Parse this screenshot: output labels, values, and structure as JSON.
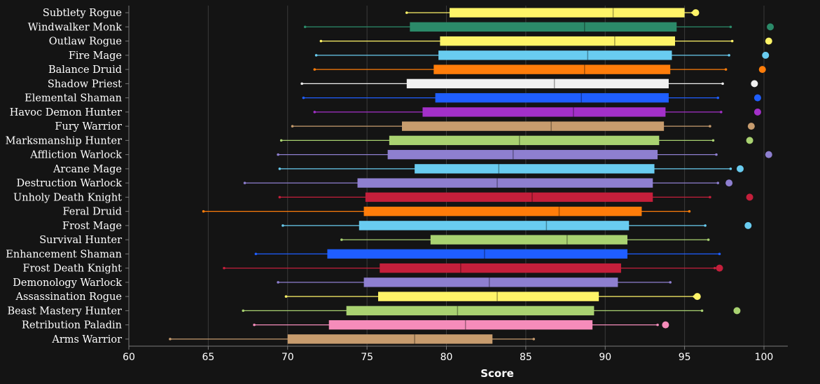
{
  "chart_data": {
    "type": "boxplot",
    "orientation": "horizontal",
    "title": "",
    "xlabel": "Score",
    "ylabel": "",
    "xlim": [
      60,
      101.5
    ],
    "xticks": [
      60,
      65,
      70,
      75,
      80,
      85,
      90,
      95,
      100
    ],
    "grid": true,
    "legend": false,
    "colors": {
      "background": "#141414",
      "grid": "#3a3a3a",
      "axis": "#7a7a7a",
      "text": "#ffffff"
    },
    "categories": [
      {
        "name": "Subtlety Rogue",
        "color": "#fff468",
        "whisker_low": 77.5,
        "q1": 80.2,
        "median": 90.5,
        "q3": 95.0,
        "whisker_high": 95.5,
        "outliers": [
          95.7
        ]
      },
      {
        "name": "Windwalker Monk",
        "color": "#2b8a69",
        "whisker_low": 71.1,
        "q1": 77.7,
        "median": 88.7,
        "q3": 94.5,
        "whisker_high": 97.9,
        "outliers": [
          100.4
        ]
      },
      {
        "name": "Outlaw Rogue",
        "color": "#fff468",
        "whisker_low": 72.1,
        "q1": 79.6,
        "median": 90.6,
        "q3": 94.4,
        "whisker_high": 98.0,
        "outliers": [
          100.3
        ]
      },
      {
        "name": "Fire Mage",
        "color": "#69ccf0",
        "whisker_low": 71.8,
        "q1": 79.5,
        "median": 88.9,
        "q3": 94.2,
        "whisker_high": 97.8,
        "outliers": [
          100.1
        ]
      },
      {
        "name": "Balance Druid",
        "color": "#ff7d0a",
        "whisker_low": 71.7,
        "q1": 79.2,
        "median": 88.7,
        "q3": 94.1,
        "whisker_high": 97.6,
        "outliers": [
          99.9
        ]
      },
      {
        "name": "Shadow Priest",
        "color": "#f0f0f0",
        "whisker_low": 70.9,
        "q1": 77.5,
        "median": 86.8,
        "q3": 94.0,
        "whisker_high": 97.4,
        "outliers": [
          99.4
        ]
      },
      {
        "name": "Elemental Shaman",
        "color": "#1f5eff",
        "whisker_low": 71.0,
        "q1": 79.3,
        "median": 88.5,
        "q3": 94.0,
        "whisker_high": 97.1,
        "outliers": [
          99.6
        ]
      },
      {
        "name": "Havoc Demon Hunter",
        "color": "#a330c9",
        "whisker_low": 71.7,
        "q1": 78.5,
        "median": 88.0,
        "q3": 93.8,
        "whisker_high": 97.3,
        "outliers": [
          99.6
        ]
      },
      {
        "name": "Fury Warrior",
        "color": "#c79c6e",
        "whisker_low": 70.3,
        "q1": 77.2,
        "median": 86.6,
        "q3": 93.7,
        "whisker_high": 96.6,
        "outliers": [
          99.2
        ]
      },
      {
        "name": "Marksmanship Hunter",
        "color": "#a9d271",
        "whisker_low": 69.6,
        "q1": 76.4,
        "median": 84.6,
        "q3": 93.4,
        "whisker_high": 96.8,
        "outliers": [
          99.1
        ]
      },
      {
        "name": "Affliction Warlock",
        "color": "#8e7fd0",
        "whisker_low": 69.4,
        "q1": 76.3,
        "median": 84.2,
        "q3": 93.3,
        "whisker_high": 97.0,
        "outliers": [
          100.3
        ]
      },
      {
        "name": "Arcane Mage",
        "color": "#69ccf0",
        "whisker_low": 69.5,
        "q1": 78.0,
        "median": 83.3,
        "q3": 93.1,
        "whisker_high": 97.9,
        "outliers": [
          98.5
        ]
      },
      {
        "name": "Destruction Warlock",
        "color": "#8e7fd0",
        "whisker_low": 67.3,
        "q1": 74.4,
        "median": 83.2,
        "q3": 93.0,
        "whisker_high": 97.1,
        "outliers": [
          97.8
        ]
      },
      {
        "name": "Unholy Death Knight",
        "color": "#c41f3b",
        "whisker_low": 69.5,
        "q1": 74.9,
        "median": 85.4,
        "q3": 93.0,
        "whisker_high": 96.6,
        "outliers": [
          99.1
        ]
      },
      {
        "name": "Feral Druid",
        "color": "#ff7d0a",
        "whisker_low": 64.7,
        "q1": 74.8,
        "median": 87.1,
        "q3": 92.3,
        "whisker_high": 95.3,
        "outliers": []
      },
      {
        "name": "Frost Mage",
        "color": "#69ccf0",
        "whisker_low": 69.7,
        "q1": 74.5,
        "median": 86.3,
        "q3": 91.5,
        "whisker_high": 96.3,
        "outliers": [
          99.0
        ]
      },
      {
        "name": "Survival Hunter",
        "color": "#a9d271",
        "whisker_low": 73.4,
        "q1": 79.0,
        "median": 87.6,
        "q3": 91.4,
        "whisker_high": 96.5,
        "outliers": []
      },
      {
        "name": "Enhancement Shaman",
        "color": "#1f5eff",
        "whisker_low": 68.0,
        "q1": 72.5,
        "median": 82.4,
        "q3": 91.4,
        "whisker_high": 97.2,
        "outliers": []
      },
      {
        "name": "Frost Death Knight",
        "color": "#c41f3b",
        "whisker_low": 66.0,
        "q1": 75.8,
        "median": 80.9,
        "q3": 91.0,
        "whisker_high": 96.9,
        "outliers": [
          97.2
        ]
      },
      {
        "name": "Demonology Warlock",
        "color": "#8e7fd0",
        "whisker_low": 69.4,
        "q1": 74.8,
        "median": 82.7,
        "q3": 90.8,
        "whisker_high": 94.1,
        "outliers": []
      },
      {
        "name": "Assassination Rogue",
        "color": "#fff468",
        "whisker_low": 69.9,
        "q1": 75.7,
        "median": 83.2,
        "q3": 89.6,
        "whisker_high": 95.6,
        "outliers": [
          95.8
        ]
      },
      {
        "name": "Beast Mastery Hunter",
        "color": "#a9d271",
        "whisker_low": 67.2,
        "q1": 73.7,
        "median": 80.7,
        "q3": 89.3,
        "whisker_high": 96.1,
        "outliers": [
          98.3
        ]
      },
      {
        "name": "Retribution Paladin",
        "color": "#f58cba",
        "whisker_low": 67.9,
        "q1": 72.6,
        "median": 81.2,
        "q3": 89.2,
        "whisker_high": 93.3,
        "outliers": [
          93.8
        ]
      },
      {
        "name": "Arms Warrior",
        "color": "#c79c6e",
        "whisker_low": 62.6,
        "q1": 70.0,
        "median": 78.0,
        "q3": 82.9,
        "whisker_high": 85.5,
        "outliers": []
      }
    ]
  }
}
